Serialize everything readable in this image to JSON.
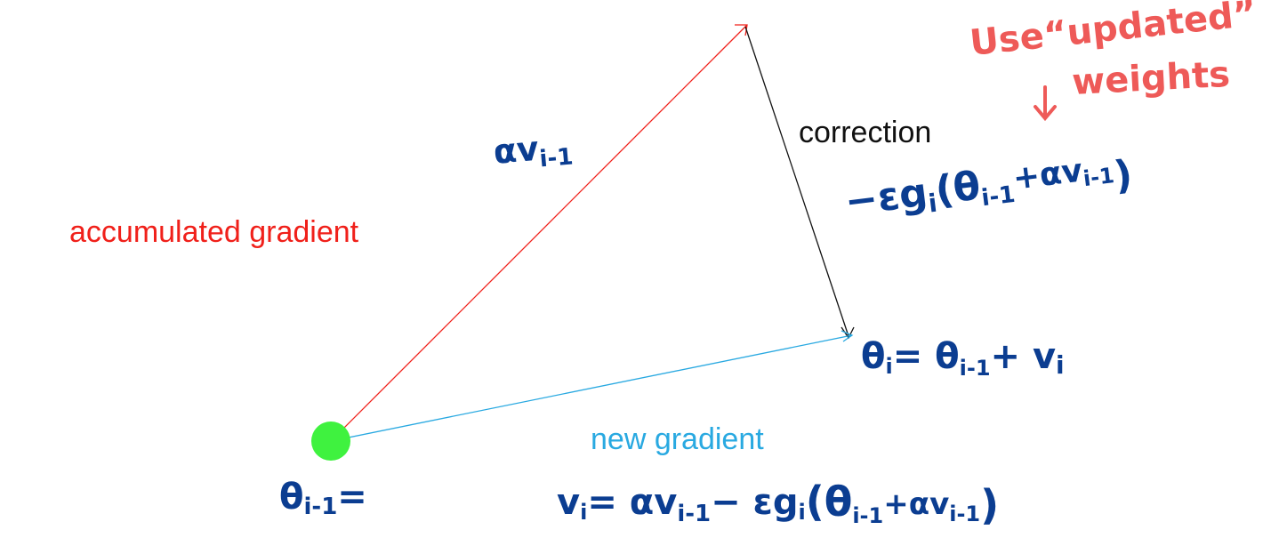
{
  "colors": {
    "red": "#f0201a",
    "black": "#111111",
    "cyan": "#29a9e1",
    "navy": "#0b3d91",
    "salmon": "#ee5a58",
    "dot_green": "#3ff23f"
  },
  "labels": {
    "accumulated_gradient": "accumulated gradient",
    "correction": "correction",
    "new_gradient": "new gradient"
  },
  "handwriting": {
    "alpha_v_prev": "αv",
    "alpha_v_prev_sub": "i-1",
    "correction_formula": "−εg",
    "correction_formula_sub": "i",
    "correction_formula_arg": "(θ",
    "correction_formula_arg_sub": "i-1",
    "correction_formula_tail": "+αv",
    "correction_formula_tail_sub": "i-1",
    "correction_formula_close": ")",
    "note_line1": "Use“updated”",
    "note_line2": "weights",
    "theta_i": "θ",
    "theta_i_sub": "i",
    "theta_i_rest": "= θ",
    "theta_i_rest_sub": "i-1",
    "theta_i_plus": "+ v",
    "theta_i_plus_sub": "i",
    "theta_prev": "θ",
    "theta_prev_sub": "i-1",
    "theta_prev_eq": "=",
    "v_update": "v",
    "v_update_sub": "i",
    "v_update_rest": "= αv",
    "v_update_rest_sub": "i-1",
    "v_update_minus": "− εg",
    "v_update_minus_sub": "i",
    "v_update_arg": "(θ",
    "v_update_arg_sub": "i-1",
    "v_update_tail": "+αv",
    "v_update_tail_sub": "i-1",
    "v_update_close": ")"
  }
}
